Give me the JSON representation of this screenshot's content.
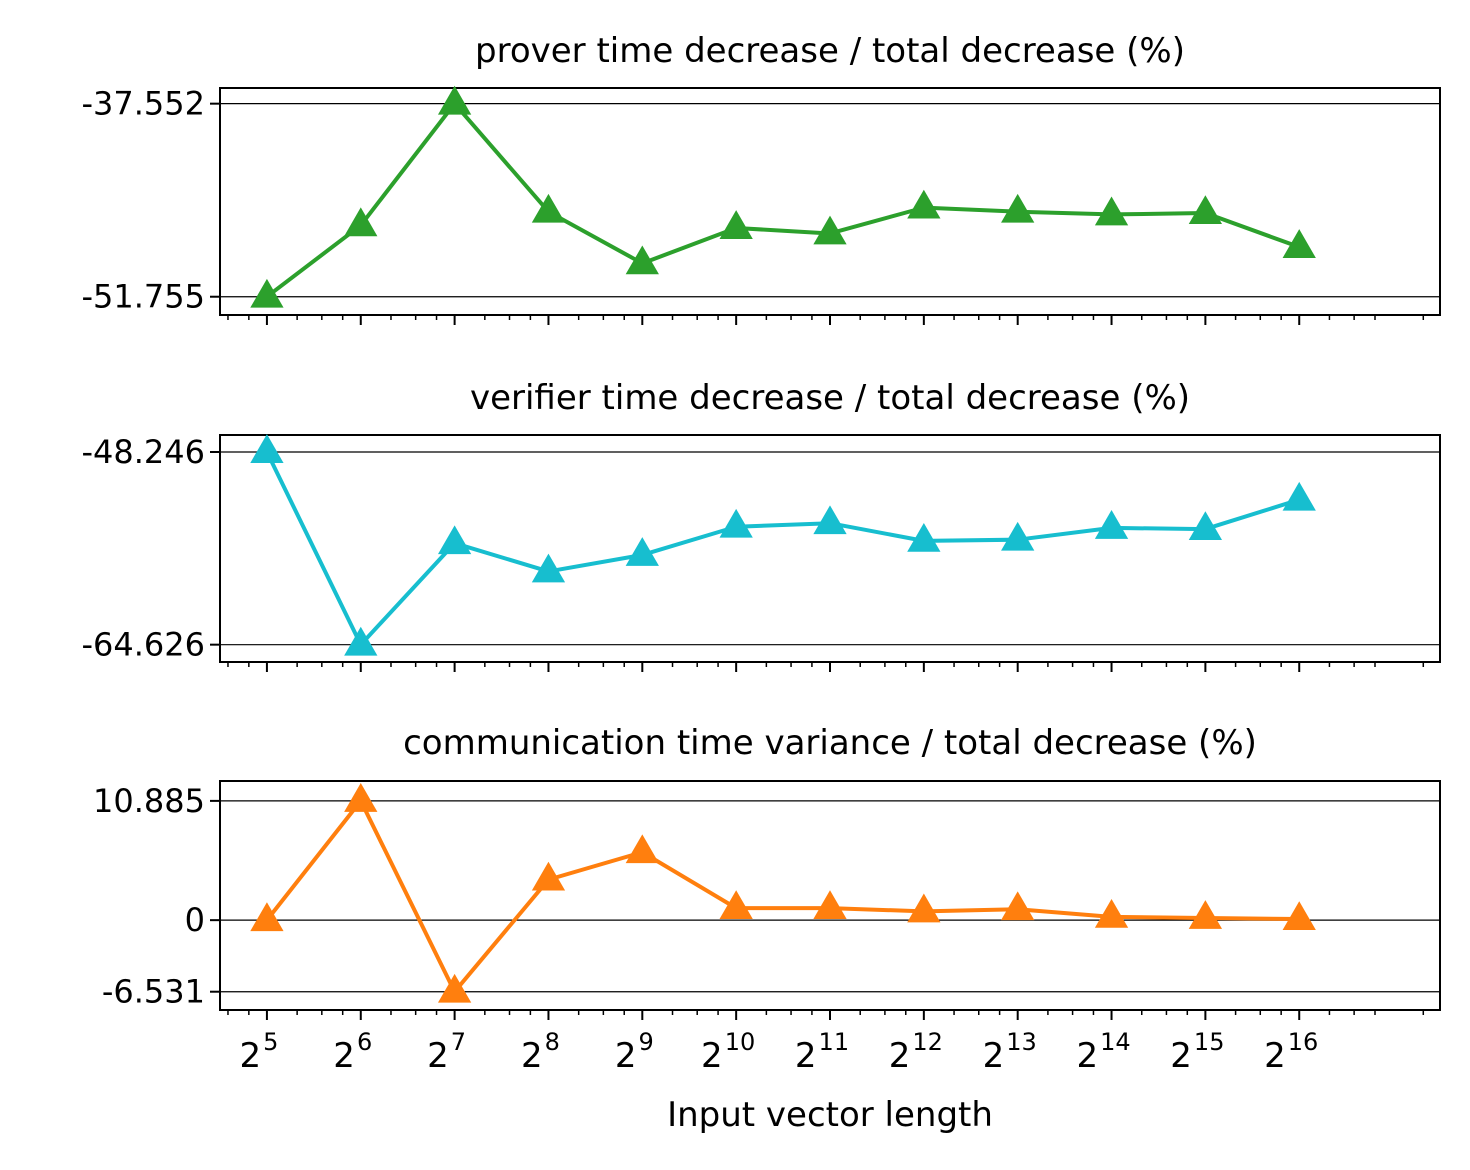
{
  "chart_data": [
    {
      "type": "line",
      "title": "prover time decrease / total decrease (%)",
      "x": [
        5,
        6,
        7,
        8,
        9,
        10,
        11,
        12,
        13,
        14,
        15,
        16
      ],
      "xtick_labels": [
        "5",
        "6",
        "7",
        "8",
        "9",
        "10",
        "11",
        "12",
        "13",
        "14",
        "15",
        "16"
      ],
      "xlabel": "",
      "ylabel": "",
      "yticks": [
        -51.755,
        -37.552
      ],
      "ytick_labels": [
        "-51.755",
        "-37.552"
      ],
      "ylim": [
        -53.1,
        -36.4
      ],
      "grid": false,
      "legend": "none",
      "series": [
        {
          "color": "#2ca02c",
          "values": [
            -51.755,
            -46.5,
            -37.552,
            -45.5,
            -49.3,
            -46.7,
            -47.1,
            -45.2,
            -45.5,
            -45.7,
            -45.6,
            -48.1
          ]
        }
      ]
    },
    {
      "type": "line",
      "title": "verifier time decrease / total decrease (%)",
      "x": [
        5,
        6,
        7,
        8,
        9,
        10,
        11,
        12,
        13,
        14,
        15,
        16
      ],
      "xtick_labels": [
        "5",
        "6",
        "7",
        "8",
        "9",
        "10",
        "11",
        "12",
        "13",
        "14",
        "15",
        "16"
      ],
      "xlabel": "",
      "ylabel": "",
      "yticks": [
        -64.626,
        -48.246
      ],
      "ytick_labels": [
        "-64.626",
        "-48.246"
      ],
      "ylim": [
        -66.1,
        -46.8
      ],
      "grid": false,
      "legend": "none",
      "series": [
        {
          "color": "#17becf",
          "values": [
            -48.246,
            -64.626,
            -56.0,
            -58.4,
            -57.0,
            -54.6,
            -54.3,
            -55.8,
            -55.7,
            -54.7,
            -54.8,
            -52.3
          ]
        }
      ]
    },
    {
      "type": "line",
      "title": "communication time variance / total decrease (%)",
      "x": [
        5,
        6,
        7,
        8,
        9,
        10,
        11,
        12,
        13,
        14,
        15,
        16
      ],
      "xtick_labels": [
        "5",
        "6",
        "7",
        "8",
        "9",
        "10",
        "11",
        "12",
        "13",
        "14",
        "15",
        "16"
      ],
      "xlabel": "Input vector length",
      "ylabel": "",
      "yticks": [
        -6.531,
        0,
        10.885
      ],
      "ytick_labels": [
        "-6.531",
        "0",
        "10.885"
      ],
      "ylim": [
        -8.2,
        12.7
      ],
      "grid": false,
      "legend": "none",
      "series": [
        {
          "color": "#ff7f0e",
          "values": [
            0.0,
            10.885,
            -6.531,
            3.7,
            6.2,
            1.1,
            1.1,
            0.8,
            1.0,
            0.3,
            0.2,
            0.1
          ]
        }
      ]
    }
  ]
}
